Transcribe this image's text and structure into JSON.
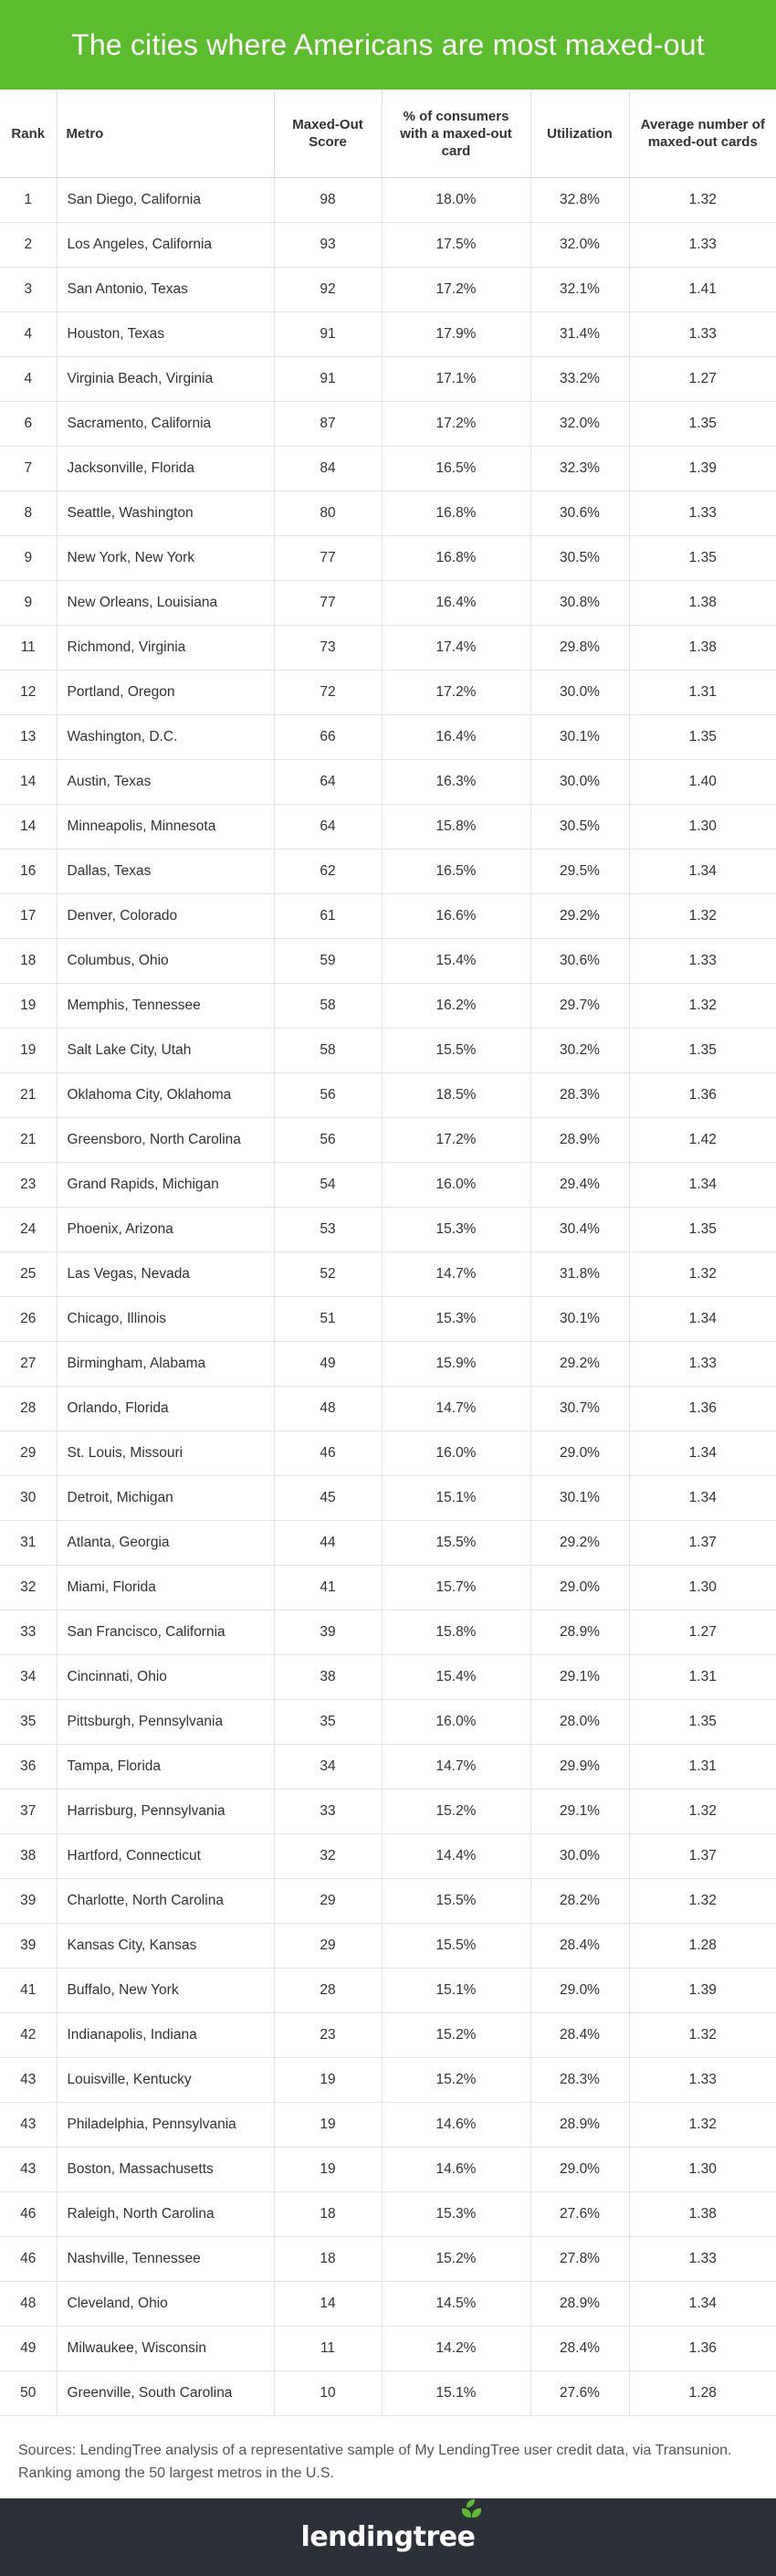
{
  "title": "The cities where Americans are most maxed-out",
  "chart_data": {
    "type": "table",
    "columns": [
      "Rank",
      "Metro",
      "Maxed-Out Score",
      "% of consumers with a maxed-out card",
      "Utilization",
      "Average number of maxed-out cards"
    ],
    "rows": [
      [
        "1",
        "San Diego, California",
        "98",
        "18.0%",
        "32.8%",
        "1.32"
      ],
      [
        "2",
        "Los Angeles, California",
        "93",
        "17.5%",
        "32.0%",
        "1.33"
      ],
      [
        "3",
        "San Antonio, Texas",
        "92",
        "17.2%",
        "32.1%",
        "1.41"
      ],
      [
        "4",
        "Houston, Texas",
        "91",
        "17.9%",
        "31.4%",
        "1.33"
      ],
      [
        "4",
        "Virginia Beach, Virginia",
        "91",
        "17.1%",
        "33.2%",
        "1.27"
      ],
      [
        "6",
        "Sacramento, California",
        "87",
        "17.2%",
        "32.0%",
        "1.35"
      ],
      [
        "7",
        "Jacksonville, Florida",
        "84",
        "16.5%",
        "32.3%",
        "1.39"
      ],
      [
        "8",
        "Seattle, Washington",
        "80",
        "16.8%",
        "30.6%",
        "1.33"
      ],
      [
        "9",
        "New York, New York",
        "77",
        "16.8%",
        "30.5%",
        "1.35"
      ],
      [
        "9",
        "New Orleans, Louisiana",
        "77",
        "16.4%",
        "30.8%",
        "1.38"
      ],
      [
        "11",
        "Richmond, Virginia",
        "73",
        "17.4%",
        "29.8%",
        "1.38"
      ],
      [
        "12",
        "Portland, Oregon",
        "72",
        "17.2%",
        "30.0%",
        "1.31"
      ],
      [
        "13",
        "Washington, D.C.",
        "66",
        "16.4%",
        "30.1%",
        "1.35"
      ],
      [
        "14",
        "Austin, Texas",
        "64",
        "16.3%",
        "30.0%",
        "1.40"
      ],
      [
        "14",
        "Minneapolis, Minnesota",
        "64",
        "15.8%",
        "30.5%",
        "1.30"
      ],
      [
        "16",
        "Dallas, Texas",
        "62",
        "16.5%",
        "29.5%",
        "1.34"
      ],
      [
        "17",
        "Denver, Colorado",
        "61",
        "16.6%",
        "29.2%",
        "1.32"
      ],
      [
        "18",
        "Columbus, Ohio",
        "59",
        "15.4%",
        "30.6%",
        "1.33"
      ],
      [
        "19",
        "Memphis, Tennessee",
        "58",
        "16.2%",
        "29.7%",
        "1.32"
      ],
      [
        "19",
        "Salt Lake City, Utah",
        "58",
        "15.5%",
        "30.2%",
        "1.35"
      ],
      [
        "21",
        "Oklahoma City, Oklahoma",
        "56",
        "18.5%",
        "28.3%",
        "1.36"
      ],
      [
        "21",
        "Greensboro, North Carolina",
        "56",
        "17.2%",
        "28.9%",
        "1.42"
      ],
      [
        "23",
        "Grand Rapids, Michigan",
        "54",
        "16.0%",
        "29.4%",
        "1.34"
      ],
      [
        "24",
        "Phoenix, Arizona",
        "53",
        "15.3%",
        "30.4%",
        "1.35"
      ],
      [
        "25",
        "Las Vegas, Nevada",
        "52",
        "14.7%",
        "31.8%",
        "1.32"
      ],
      [
        "26",
        "Chicago, Illinois",
        "51",
        "15.3%",
        "30.1%",
        "1.34"
      ],
      [
        "27",
        "Birmingham, Alabama",
        "49",
        "15.9%",
        "29.2%",
        "1.33"
      ],
      [
        "28",
        "Orlando, Florida",
        "48",
        "14.7%",
        "30.7%",
        "1.36"
      ],
      [
        "29",
        "St. Louis, Missouri",
        "46",
        "16.0%",
        "29.0%",
        "1.34"
      ],
      [
        "30",
        "Detroit, Michigan",
        "45",
        "15.1%",
        "30.1%",
        "1.34"
      ],
      [
        "31",
        "Atlanta, Georgia",
        "44",
        "15.5%",
        "29.2%",
        "1.37"
      ],
      [
        "32",
        "Miami, Florida",
        "41",
        "15.7%",
        "29.0%",
        "1.30"
      ],
      [
        "33",
        "San Francisco, California",
        "39",
        "15.8%",
        "28.9%",
        "1.27"
      ],
      [
        "34",
        "Cincinnati, Ohio",
        "38",
        "15.4%",
        "29.1%",
        "1.31"
      ],
      [
        "35",
        "Pittsburgh, Pennsylvania",
        "35",
        "16.0%",
        "28.0%",
        "1.35"
      ],
      [
        "36",
        "Tampa, Florida",
        "34",
        "14.7%",
        "29.9%",
        "1.31"
      ],
      [
        "37",
        "Harrisburg, Pennsylvania",
        "33",
        "15.2%",
        "29.1%",
        "1.32"
      ],
      [
        "38",
        "Hartford, Connecticut",
        "32",
        "14.4%",
        "30.0%",
        "1.37"
      ],
      [
        "39",
        "Charlotte, North Carolina",
        "29",
        "15.5%",
        "28.2%",
        "1.32"
      ],
      [
        "39",
        "Kansas City, Kansas",
        "29",
        "15.5%",
        "28.4%",
        "1.28"
      ],
      [
        "41",
        "Buffalo, New York",
        "28",
        "15.1%",
        "29.0%",
        "1.39"
      ],
      [
        "42",
        "Indianapolis, Indiana",
        "23",
        "15.2%",
        "28.4%",
        "1.32"
      ],
      [
        "43",
        "Louisville, Kentucky",
        "19",
        "15.2%",
        "28.3%",
        "1.33"
      ],
      [
        "43",
        "Philadelphia, Pennsylvania",
        "19",
        "14.6%",
        "28.9%",
        "1.32"
      ],
      [
        "43",
        "Boston, Massachusetts",
        "19",
        "14.6%",
        "29.0%",
        "1.30"
      ],
      [
        "46",
        "Raleigh, North Carolina",
        "18",
        "15.3%",
        "27.6%",
        "1.38"
      ],
      [
        "46",
        "Nashville, Tennessee",
        "18",
        "15.2%",
        "27.8%",
        "1.33"
      ],
      [
        "48",
        "Cleveland, Ohio",
        "14",
        "14.5%",
        "28.9%",
        "1.34"
      ],
      [
        "49",
        "Milwaukee, Wisconsin",
        "11",
        "14.2%",
        "28.4%",
        "1.36"
      ],
      [
        "50",
        "Greenville, South Carolina",
        "10",
        "15.1%",
        "27.6%",
        "1.28"
      ]
    ]
  },
  "sources": "Sources: LendingTree analysis of a representative sample of My LendingTree user credit data, via Transunion. Ranking among the 50 largest metros in the U.S.",
  "brand": {
    "logo_text": "lendingtree",
    "header_color": "#5cbd2c",
    "footer_color": "#2c3038"
  }
}
